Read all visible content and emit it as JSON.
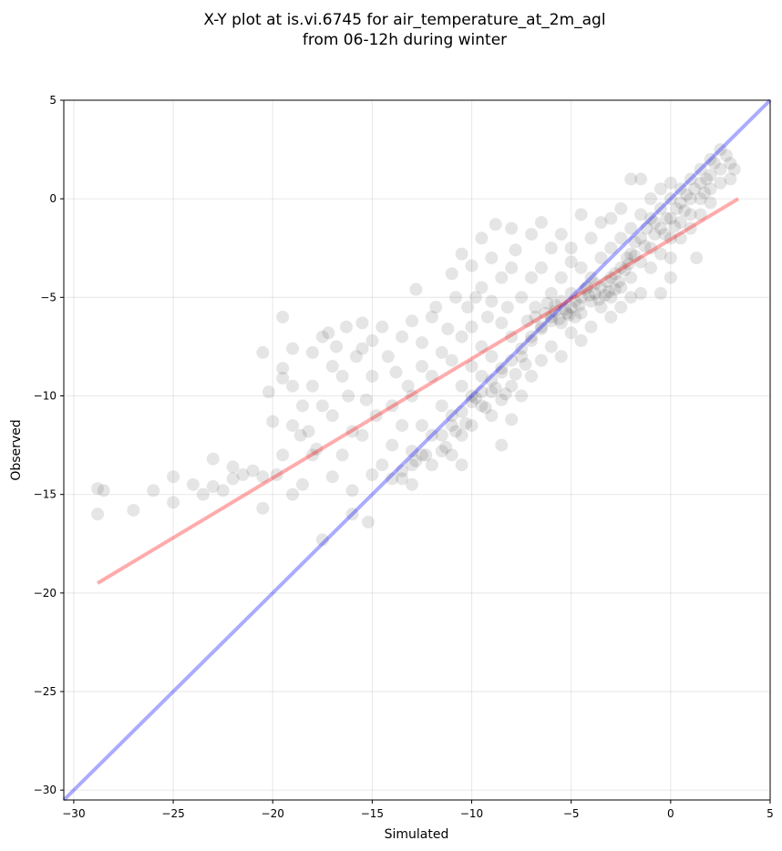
{
  "chart_data": {
    "type": "scatter",
    "title_lines": [
      "X-Y plot at is.vi.6745 for air_temperature_at_2m_agl",
      "from 06-12h during winter"
    ],
    "xlabel": "Simulated",
    "ylabel": "Observed",
    "xlim": [
      -30.5,
      5
    ],
    "ylim": [
      -30.5,
      5
    ],
    "xticks": [
      -30,
      -25,
      -20,
      -15,
      -10,
      -5,
      0,
      5
    ],
    "yticks": [
      -30,
      -25,
      -20,
      -15,
      -10,
      -5,
      0,
      5
    ],
    "xtick_labels": [
      "−30",
      "−25",
      "−20",
      "−15",
      "−10",
      "−5",
      "0",
      "5"
    ],
    "ytick_labels": [
      "−30",
      "−25",
      "−20",
      "−15",
      "−10",
      "−5",
      "0",
      "5"
    ],
    "grid": true,
    "point_color": "#000000",
    "point_alpha": 0.1,
    "identity_line": {
      "x": [
        -30.5,
        5
      ],
      "y": [
        -30.5,
        5
      ],
      "color": "#0000ff",
      "alpha": 0.33
    },
    "fit_line": {
      "x": [
        -28.8,
        3.4
      ],
      "y": [
        -19.5,
        0.0
      ],
      "color": "#ff0000",
      "alpha": 0.33
    },
    "points": [
      [
        -28.8,
        -14.7
      ],
      [
        -28.5,
        -14.8
      ],
      [
        -28.8,
        -16.0
      ],
      [
        -27.0,
        -15.8
      ],
      [
        -26.0,
        -14.8
      ],
      [
        -25.0,
        -14.1
      ],
      [
        -25.0,
        -15.4
      ],
      [
        -24.0,
        -14.5
      ],
      [
        -23.5,
        -15.0
      ],
      [
        -23.0,
        -14.6
      ],
      [
        -23.0,
        -13.2
      ],
      [
        -22.5,
        -14.8
      ],
      [
        -22.0,
        -14.2
      ],
      [
        -22.0,
        -13.6
      ],
      [
        -21.5,
        -14.0
      ],
      [
        -21.0,
        -13.8
      ],
      [
        -20.5,
        -14.1
      ],
      [
        -20.5,
        -15.7
      ],
      [
        -20.5,
        -7.8
      ],
      [
        -20.2,
        -9.8
      ],
      [
        -20.0,
        -11.3
      ],
      [
        -19.8,
        -14.0
      ],
      [
        -19.5,
        -13.0
      ],
      [
        -19.5,
        -9.1
      ],
      [
        -19.5,
        -8.6
      ],
      [
        -19.5,
        -6.0
      ],
      [
        -19.0,
        -15.0
      ],
      [
        -19.0,
        -11.5
      ],
      [
        -19.0,
        -9.5
      ],
      [
        -19.0,
        -7.6
      ],
      [
        -18.6,
        -12.0
      ],
      [
        -18.5,
        -10.5
      ],
      [
        -18.5,
        -14.5
      ],
      [
        -18.2,
        -11.8
      ],
      [
        -18.0,
        -7.8
      ],
      [
        -18.0,
        -9.5
      ],
      [
        -18.0,
        -13.0
      ],
      [
        -17.8,
        -12.7
      ],
      [
        -17.5,
        -7.0
      ],
      [
        -17.5,
        -10.5
      ],
      [
        -17.5,
        -17.3
      ],
      [
        -17.2,
        -6.8
      ],
      [
        -17.0,
        -8.5
      ],
      [
        -17.0,
        -11.0
      ],
      [
        -17.0,
        -14.1
      ],
      [
        -16.8,
        -7.5
      ],
      [
        -16.5,
        -9.0
      ],
      [
        -16.5,
        -13.0
      ],
      [
        -16.3,
        -6.5
      ],
      [
        -16.2,
        -10.0
      ],
      [
        -16.0,
        -16.0
      ],
      [
        -16.0,
        -14.8
      ],
      [
        -16.0,
        -11.8
      ],
      [
        -15.8,
        -8.0
      ],
      [
        -15.5,
        -6.3
      ],
      [
        -15.5,
        -7.6
      ],
      [
        -15.5,
        -12.0
      ],
      [
        -15.3,
        -10.2
      ],
      [
        -15.2,
        -16.4
      ],
      [
        -15.0,
        -14.0
      ],
      [
        -15.0,
        -9.0
      ],
      [
        -15.0,
        -7.2
      ],
      [
        -14.8,
        -11.0
      ],
      [
        -14.5,
        -13.5
      ],
      [
        -14.5,
        -6.5
      ],
      [
        -14.2,
        -8.0
      ],
      [
        -14.0,
        -10.5
      ],
      [
        -14.0,
        -12.5
      ],
      [
        -14.0,
        -14.2
      ],
      [
        -13.8,
        -8.8
      ],
      [
        -13.5,
        -7.0
      ],
      [
        -13.5,
        -11.5
      ],
      [
        -13.5,
        -13.8
      ],
      [
        -13.2,
        -9.5
      ],
      [
        -13.0,
        -6.2
      ],
      [
        -13.0,
        -10.0
      ],
      [
        -13.0,
        -12.8
      ],
      [
        -13.0,
        -14.5
      ],
      [
        -12.8,
        -4.6
      ],
      [
        -12.5,
        -8.5
      ],
      [
        -12.5,
        -11.5
      ],
      [
        -12.5,
        -7.3
      ],
      [
        -12.3,
        -13.0
      ],
      [
        -12.0,
        -6.0
      ],
      [
        -12.0,
        -9.0
      ],
      [
        -12.0,
        -12.0
      ],
      [
        -12.0,
        -13.5
      ],
      [
        -11.8,
        -5.5
      ],
      [
        -11.5,
        -7.8
      ],
      [
        -11.5,
        -10.5
      ],
      [
        -11.5,
        -12.8
      ],
      [
        -11.2,
        -6.6
      ],
      [
        -11.0,
        -3.8
      ],
      [
        -11.0,
        -8.2
      ],
      [
        -11.0,
        -11.0
      ],
      [
        -11.0,
        -13.0
      ],
      [
        -10.8,
        -5.0
      ],
      [
        -10.5,
        -2.8
      ],
      [
        -10.5,
        -7.0
      ],
      [
        -10.5,
        -9.5
      ],
      [
        -10.5,
        -12.0
      ],
      [
        -10.5,
        -13.5
      ],
      [
        -10.2,
        -5.5
      ],
      [
        -10.0,
        -3.4
      ],
      [
        -10.0,
        -6.5
      ],
      [
        -10.0,
        -8.5
      ],
      [
        -10.0,
        -10.0
      ],
      [
        -10.0,
        -11.5
      ],
      [
        -9.8,
        -5.0
      ],
      [
        -9.5,
        -2.0
      ],
      [
        -9.5,
        -4.5
      ],
      [
        -9.5,
        -7.5
      ],
      [
        -9.5,
        -9.0
      ],
      [
        -9.5,
        -10.5
      ],
      [
        -9.2,
        -6.0
      ],
      [
        -9.0,
        -3.0
      ],
      [
        -9.0,
        -5.2
      ],
      [
        -9.0,
        -8.0
      ],
      [
        -9.0,
        -9.8
      ],
      [
        -9.0,
        -11.0
      ],
      [
        -8.8,
        -1.3
      ],
      [
        -8.5,
        -4.0
      ],
      [
        -8.5,
        -6.3
      ],
      [
        -8.5,
        -8.8
      ],
      [
        -8.5,
        -10.2
      ],
      [
        -8.5,
        -12.5
      ],
      [
        -8.2,
        -5.5
      ],
      [
        -8.0,
        -1.5
      ],
      [
        -8.0,
        -3.5
      ],
      [
        -8.0,
        -7.0
      ],
      [
        -8.0,
        -9.5
      ],
      [
        -8.0,
        -11.2
      ],
      [
        -7.8,
        -2.6
      ],
      [
        -7.5,
        -5.0
      ],
      [
        -7.5,
        -8.0
      ],
      [
        -7.5,
        -10.0
      ],
      [
        -7.2,
        -6.2
      ],
      [
        -7.0,
        -1.8
      ],
      [
        -7.0,
        -4.0
      ],
      [
        -7.0,
        -7.2
      ],
      [
        -7.0,
        -9.0
      ],
      [
        -6.8,
        -5.5
      ],
      [
        -6.5,
        -1.2
      ],
      [
        -6.5,
        -3.5
      ],
      [
        -6.5,
        -6.5
      ],
      [
        -6.5,
        -8.2
      ],
      [
        -6.2,
        -5.3
      ],
      [
        -6.0,
        -2.5
      ],
      [
        -6.0,
        -4.8
      ],
      [
        -6.0,
        -6.0
      ],
      [
        -6.0,
        -7.5
      ],
      [
        -5.8,
        -5.7
      ],
      [
        -5.5,
        -1.8
      ],
      [
        -5.5,
        -4.0
      ],
      [
        -5.5,
        -5.2
      ],
      [
        -5.5,
        -6.3
      ],
      [
        -5.5,
        -8.0
      ],
      [
        -5.2,
        -5.8
      ],
      [
        -5.0,
        -2.5
      ],
      [
        -5.0,
        -3.2
      ],
      [
        -5.0,
        -4.8
      ],
      [
        -5.0,
        -5.5
      ],
      [
        -5.0,
        -6.8
      ],
      [
        -4.8,
        -6.0
      ],
      [
        -4.5,
        -0.8
      ],
      [
        -4.5,
        -3.5
      ],
      [
        -4.5,
        -5.0
      ],
      [
        -4.5,
        -5.8
      ],
      [
        -4.5,
        -7.2
      ],
      [
        -4.2,
        -4.5
      ],
      [
        -4.0,
        -2.0
      ],
      [
        -4.0,
        -4.0
      ],
      [
        -4.0,
        -5.2
      ],
      [
        -4.0,
        -6.5
      ],
      [
        -3.8,
        -4.8
      ],
      [
        -3.5,
        -1.2
      ],
      [
        -3.5,
        -3.0
      ],
      [
        -3.5,
        -4.5
      ],
      [
        -3.5,
        -5.5
      ],
      [
        -3.2,
        -4.2
      ],
      [
        -3.0,
        -1.0
      ],
      [
        -3.0,
        -2.5
      ],
      [
        -3.0,
        -4.0
      ],
      [
        -3.0,
        -5.0
      ],
      [
        -3.0,
        -6.0
      ],
      [
        -2.8,
        -4.6
      ],
      [
        -2.5,
        -0.5
      ],
      [
        -2.5,
        -2.0
      ],
      [
        -2.5,
        -3.5
      ],
      [
        -2.5,
        -4.5
      ],
      [
        -2.5,
        -5.5
      ],
      [
        -2.2,
        -3.0
      ],
      [
        -2.0,
        1.0
      ],
      [
        -2.0,
        -1.5
      ],
      [
        -2.0,
        -2.8
      ],
      [
        -2.0,
        -4.0
      ],
      [
        -2.0,
        -5.0
      ],
      [
        -1.8,
        -2.2
      ],
      [
        -1.5,
        1.0
      ],
      [
        -1.5,
        -0.8
      ],
      [
        -1.5,
        -2.0
      ],
      [
        -1.5,
        -3.2
      ],
      [
        -1.5,
        -4.8
      ],
      [
        -1.2,
        -1.5
      ],
      [
        -1.0,
        0.0
      ],
      [
        -1.0,
        -1.0
      ],
      [
        -1.0,
        -2.5
      ],
      [
        -1.0,
        -3.5
      ],
      [
        -0.8,
        -1.8
      ],
      [
        -0.5,
        0.5
      ],
      [
        -0.5,
        -0.5
      ],
      [
        -0.5,
        -1.5
      ],
      [
        -0.5,
        -2.8
      ],
      [
        -0.5,
        -4.8
      ],
      [
        -0.2,
        -1.0
      ],
      [
        0.0,
        0.8
      ],
      [
        0.0,
        0.0
      ],
      [
        0.0,
        -1.0
      ],
      [
        0.0,
        -2.0
      ],
      [
        0.0,
        -3.0
      ],
      [
        0.0,
        -4.0
      ],
      [
        0.3,
        -0.5
      ],
      [
        0.5,
        0.5
      ],
      [
        0.5,
        -0.2
      ],
      [
        0.5,
        -1.2
      ],
      [
        0.5,
        -2.0
      ],
      [
        0.8,
        0.2
      ],
      [
        1.0,
        1.0
      ],
      [
        1.0,
        0.0
      ],
      [
        1.0,
        -0.8
      ],
      [
        1.0,
        -1.5
      ],
      [
        1.2,
        0.5
      ],
      [
        1.5,
        1.5
      ],
      [
        1.5,
        0.8
      ],
      [
        1.5,
        0.0
      ],
      [
        1.5,
        -0.8
      ],
      [
        1.3,
        -3.0
      ],
      [
        1.8,
        1.0
      ],
      [
        2.0,
        2.0
      ],
      [
        2.0,
        1.2
      ],
      [
        2.0,
        0.5
      ],
      [
        2.0,
        -0.2
      ],
      [
        2.2,
        1.8
      ],
      [
        2.5,
        2.5
      ],
      [
        2.5,
        1.5
      ],
      [
        2.5,
        0.8
      ],
      [
        2.8,
        2.2
      ],
      [
        3.0,
        1.8
      ],
      [
        3.0,
        1.0
      ],
      [
        3.2,
        1.5
      ],
      [
        -13.5,
        -14.2
      ],
      [
        -13.0,
        -13.5
      ],
      [
        -12.5,
        -13.0
      ],
      [
        -11.5,
        -12.0
      ],
      [
        -11.0,
        -11.5
      ],
      [
        -10.5,
        -10.8
      ],
      [
        -10.0,
        -10.3
      ],
      [
        -9.5,
        -9.8
      ],
      [
        -9.0,
        -9.2
      ],
      [
        -8.5,
        -8.6
      ],
      [
        -8.0,
        -8.2
      ],
      [
        -7.5,
        -7.6
      ],
      [
        -7.0,
        -7.0
      ],
      [
        -6.5,
        -6.6
      ],
      [
        -6.0,
        -6.2
      ],
      [
        -5.8,
        -5.4
      ],
      [
        -5.3,
        -5.6
      ],
      [
        -4.8,
        -5.2
      ],
      [
        -4.3,
        -4.6
      ],
      [
        -3.8,
        -4.3
      ],
      [
        -3.3,
        -4.9
      ],
      [
        -2.8,
        -3.8
      ],
      [
        -2.3,
        -3.6
      ],
      [
        -1.8,
        -2.9
      ],
      [
        -1.3,
        -2.4
      ],
      [
        -0.8,
        -1.2
      ],
      [
        -0.3,
        -1.8
      ],
      [
        0.2,
        -1.4
      ],
      [
        0.7,
        -0.6
      ],
      [
        1.7,
        0.3
      ],
      [
        -6.8,
        -6.0
      ],
      [
        -6.3,
        -5.8
      ],
      [
        -5.6,
        -6.1
      ],
      [
        -5.1,
        -5.9
      ],
      [
        -4.6,
        -5.4
      ],
      [
        -4.1,
        -4.9
      ],
      [
        -3.6,
        -5.1
      ],
      [
        -3.1,
        -4.7
      ],
      [
        -2.6,
        -4.2
      ],
      [
        -2.1,
        -3.3
      ],
      [
        -9.3,
        -10.6
      ],
      [
        -8.8,
        -9.6
      ],
      [
        -8.3,
        -9.9
      ],
      [
        -7.8,
        -8.9
      ],
      [
        -7.3,
        -8.4
      ],
      [
        -10.8,
        -11.8
      ],
      [
        -10.3,
        -11.4
      ],
      [
        -9.8,
        -10.1
      ],
      [
        -11.3,
        -12.6
      ],
      [
        -12.8,
        -13.3
      ]
    ]
  }
}
